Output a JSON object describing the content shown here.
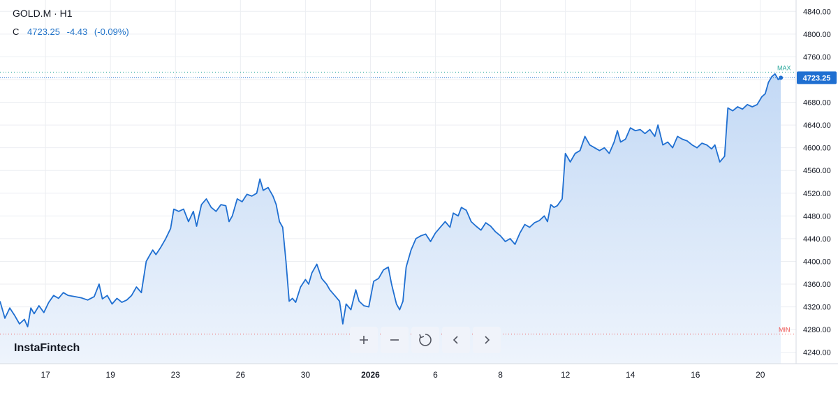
{
  "legend": {
    "symbol": "GOLD.M · H1",
    "close_label": "C",
    "close_value": "4723.25",
    "change": "-4.43",
    "change_pct": "(-0.09%)"
  },
  "brand": "InstaFintech",
  "toolbar": {
    "buttons": [
      {
        "name": "zoom-in-button",
        "icon": "plus-icon"
      },
      {
        "name": "zoom-out-button",
        "icon": "minus-icon"
      },
      {
        "name": "reset-button",
        "icon": "reset-icon"
      },
      {
        "name": "scroll-left-button",
        "icon": "chevron-left-icon"
      },
      {
        "name": "scroll-right-button",
        "icon": "chevron-right-icon"
      }
    ]
  },
  "colors": {
    "line": "#1f6fd1",
    "fill_top": "#c3d9f5",
    "fill_bottom": "#eef4fc",
    "max": "#26a69a",
    "min": "#ef5350",
    "grid": "#eceef2",
    "axis_text": "#131722",
    "price_badge": "#1f6fd1"
  },
  "chart_data": {
    "type": "area",
    "ylim": [
      4220,
      4860
    ],
    "xlim": [
      0,
      24.5
    ],
    "grid": true,
    "y_ticks": [
      4240,
      4280,
      4320,
      4360,
      4400,
      4440,
      4480,
      4520,
      4560,
      4600,
      4640,
      4680,
      4720,
      4760,
      4800,
      4840
    ],
    "y_tick_labels": [
      "4240.00",
      "4280.00",
      "4320.00",
      "4360.00",
      "4400.00",
      "4440.00",
      "4480.00",
      "4520.00",
      "4560.00",
      "4600.00",
      "4640.00",
      "4680.00",
      "4720.00",
      "4760.00",
      "4800.00",
      "4840.00"
    ],
    "x_ticks": [
      {
        "x": 1.4,
        "label": "17",
        "bold": false
      },
      {
        "x": 3.4,
        "label": "19",
        "bold": false
      },
      {
        "x": 5.4,
        "label": "23",
        "bold": false
      },
      {
        "x": 7.4,
        "label": "26",
        "bold": false
      },
      {
        "x": 9.4,
        "label": "30",
        "bold": false
      },
      {
        "x": 11.4,
        "label": "2026",
        "bold": true
      },
      {
        "x": 13.4,
        "label": "6",
        "bold": false
      },
      {
        "x": 15.4,
        "label": "8",
        "bold": false
      },
      {
        "x": 17.4,
        "label": "12",
        "bold": false
      },
      {
        "x": 19.4,
        "label": "14",
        "bold": false
      },
      {
        "x": 21.4,
        "label": "16",
        "bold": false
      },
      {
        "x": 23.4,
        "label": "20",
        "bold": false
      }
    ],
    "max": {
      "value": 4733,
      "label": "MAX"
    },
    "min": {
      "value": 4272,
      "label": "MIN"
    },
    "last": {
      "value": 4723.25,
      "label": "4723.25"
    },
    "points": [
      [
        0.0,
        4330
      ],
      [
        0.15,
        4300
      ],
      [
        0.3,
        4318
      ],
      [
        0.45,
        4305
      ],
      [
        0.6,
        4290
      ],
      [
        0.75,
        4298
      ],
      [
        0.85,
        4285
      ],
      [
        0.95,
        4318
      ],
      [
        1.05,
        4308
      ],
      [
        1.2,
        4322
      ],
      [
        1.35,
        4310
      ],
      [
        1.5,
        4328
      ],
      [
        1.65,
        4340
      ],
      [
        1.8,
        4335
      ],
      [
        1.95,
        4345
      ],
      [
        2.1,
        4340
      ],
      [
        2.3,
        4338
      ],
      [
        2.5,
        4336
      ],
      [
        2.7,
        4332
      ],
      [
        2.9,
        4338
      ],
      [
        3.05,
        4360
      ],
      [
        3.15,
        4334
      ],
      [
        3.3,
        4340
      ],
      [
        3.45,
        4325
      ],
      [
        3.6,
        4335
      ],
      [
        3.75,
        4328
      ],
      [
        3.9,
        4332
      ],
      [
        4.05,
        4340
      ],
      [
        4.2,
        4355
      ],
      [
        4.35,
        4345
      ],
      [
        4.5,
        4400
      ],
      [
        4.6,
        4410
      ],
      [
        4.7,
        4420
      ],
      [
        4.8,
        4412
      ],
      [
        4.95,
        4425
      ],
      [
        5.1,
        4440
      ],
      [
        5.25,
        4458
      ],
      [
        5.35,
        4492
      ],
      [
        5.5,
        4488
      ],
      [
        5.65,
        4492
      ],
      [
        5.8,
        4470
      ],
      [
        5.95,
        4488
      ],
      [
        6.05,
        4462
      ],
      [
        6.2,
        4500
      ],
      [
        6.35,
        4510
      ],
      [
        6.5,
        4495
      ],
      [
        6.65,
        4488
      ],
      [
        6.8,
        4500
      ],
      [
        6.95,
        4498
      ],
      [
        7.05,
        4470
      ],
      [
        7.15,
        4480
      ],
      [
        7.3,
        4510
      ],
      [
        7.45,
        4505
      ],
      [
        7.6,
        4518
      ],
      [
        7.75,
        4515
      ],
      [
        7.9,
        4520
      ],
      [
        8.0,
        4545
      ],
      [
        8.1,
        4525
      ],
      [
        8.25,
        4530
      ],
      [
        8.4,
        4515
      ],
      [
        8.5,
        4500
      ],
      [
        8.6,
        4470
      ],
      [
        8.7,
        4460
      ],
      [
        8.8,
        4400
      ],
      [
        8.9,
        4330
      ],
      [
        9.0,
        4335
      ],
      [
        9.1,
        4328
      ],
      [
        9.25,
        4355
      ],
      [
        9.4,
        4368
      ],
      [
        9.5,
        4360
      ],
      [
        9.6,
        4380
      ],
      [
        9.75,
        4395
      ],
      [
        9.9,
        4370
      ],
      [
        10.05,
        4360
      ],
      [
        10.15,
        4350
      ],
      [
        10.3,
        4340
      ],
      [
        10.45,
        4330
      ],
      [
        10.55,
        4290
      ],
      [
        10.65,
        4325
      ],
      [
        10.8,
        4315
      ],
      [
        10.95,
        4350
      ],
      [
        11.05,
        4330
      ],
      [
        11.2,
        4322
      ],
      [
        11.35,
        4320
      ],
      [
        11.5,
        4365
      ],
      [
        11.65,
        4370
      ],
      [
        11.8,
        4385
      ],
      [
        11.95,
        4390
      ],
      [
        12.05,
        4360
      ],
      [
        12.2,
        4325
      ],
      [
        12.3,
        4315
      ],
      [
        12.4,
        4330
      ],
      [
        12.5,
        4390
      ],
      [
        12.65,
        4420
      ],
      [
        12.8,
        4440
      ],
      [
        12.95,
        4445
      ],
      [
        13.1,
        4448
      ],
      [
        13.25,
        4435
      ],
      [
        13.4,
        4450
      ],
      [
        13.55,
        4460
      ],
      [
        13.7,
        4470
      ],
      [
        13.85,
        4460
      ],
      [
        13.95,
        4485
      ],
      [
        14.1,
        4480
      ],
      [
        14.2,
        4495
      ],
      [
        14.35,
        4490
      ],
      [
        14.5,
        4470
      ],
      [
        14.65,
        4462
      ],
      [
        14.8,
        4455
      ],
      [
        14.95,
        4468
      ],
      [
        15.1,
        4462
      ],
      [
        15.25,
        4452
      ],
      [
        15.4,
        4445
      ],
      [
        15.55,
        4435
      ],
      [
        15.7,
        4440
      ],
      [
        15.85,
        4430
      ],
      [
        16.0,
        4450
      ],
      [
        16.15,
        4465
      ],
      [
        16.3,
        4460
      ],
      [
        16.45,
        4468
      ],
      [
        16.6,
        4472
      ],
      [
        16.75,
        4480
      ],
      [
        16.85,
        4470
      ],
      [
        16.95,
        4500
      ],
      [
        17.05,
        4495
      ],
      [
        17.15,
        4498
      ],
      [
        17.3,
        4510
      ],
      [
        17.4,
        4590
      ],
      [
        17.55,
        4575
      ],
      [
        17.7,
        4590
      ],
      [
        17.85,
        4595
      ],
      [
        18.0,
        4620
      ],
      [
        18.15,
        4605
      ],
      [
        18.3,
        4600
      ],
      [
        18.45,
        4595
      ],
      [
        18.6,
        4600
      ],
      [
        18.75,
        4590
      ],
      [
        18.9,
        4610
      ],
      [
        19.0,
        4630
      ],
      [
        19.1,
        4610
      ],
      [
        19.25,
        4615
      ],
      [
        19.4,
        4635
      ],
      [
        19.55,
        4630
      ],
      [
        19.7,
        4632
      ],
      [
        19.85,
        4625
      ],
      [
        20.0,
        4632
      ],
      [
        20.15,
        4620
      ],
      [
        20.25,
        4640
      ],
      [
        20.4,
        4605
      ],
      [
        20.55,
        4610
      ],
      [
        20.7,
        4600
      ],
      [
        20.85,
        4620
      ],
      [
        21.0,
        4615
      ],
      [
        21.15,
        4612
      ],
      [
        21.3,
        4605
      ],
      [
        21.45,
        4600
      ],
      [
        21.6,
        4608
      ],
      [
        21.75,
        4605
      ],
      [
        21.9,
        4598
      ],
      [
        22.0,
        4605
      ],
      [
        22.15,
        4575
      ],
      [
        22.3,
        4585
      ],
      [
        22.4,
        4670
      ],
      [
        22.55,
        4665
      ],
      [
        22.7,
        4672
      ],
      [
        22.85,
        4668
      ],
      [
        23.0,
        4676
      ],
      [
        23.15,
        4672
      ],
      [
        23.3,
        4676
      ],
      [
        23.45,
        4690
      ],
      [
        23.55,
        4695
      ],
      [
        23.65,
        4715
      ],
      [
        23.75,
        4725
      ],
      [
        23.85,
        4730
      ],
      [
        23.95,
        4720
      ],
      [
        24.03,
        4723.25
      ]
    ]
  }
}
